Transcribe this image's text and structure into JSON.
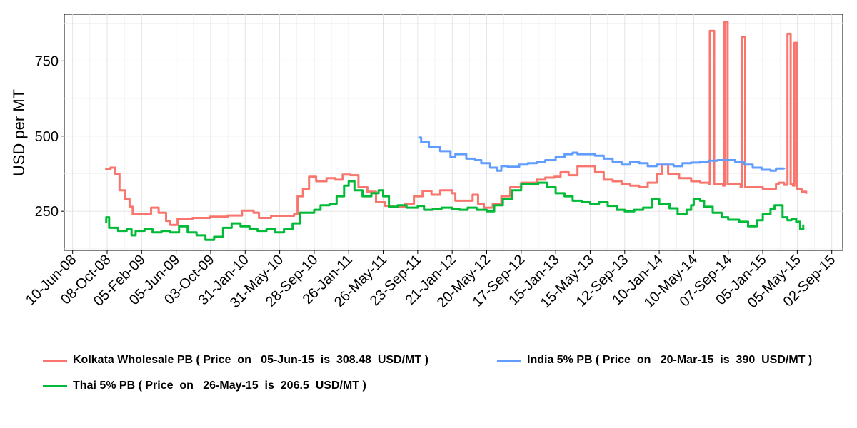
{
  "chart_data": {
    "type": "line",
    "title": "",
    "xlabel": "",
    "ylabel": "USD per MT",
    "ylim": [
      120,
      905
    ],
    "xlim": [
      "2008-05-12",
      "2015-10-10"
    ],
    "yticks": [
      250,
      500,
      750
    ],
    "xticks": [
      "10-Jun-08",
      "08-Oct-08",
      "05-Feb-09",
      "05-Jun-09",
      "03-Oct-09",
      "31-Jan-10",
      "31-May-10",
      "28-Sep-10",
      "26-Jan-11",
      "26-May-11",
      "23-Sep-11",
      "21-Jan-12",
      "20-May-12",
      "17-Sep-12",
      "15-Jan-13",
      "15-May-13",
      "12-Sep-13",
      "10-Jan-14",
      "10-May-14",
      "07-Sep-14",
      "05-Jan-15",
      "05-May-15",
      "02-Sep-15"
    ],
    "xtick_dates": [
      "2008-06-10",
      "2008-10-08",
      "2009-02-05",
      "2009-06-05",
      "2009-10-03",
      "2010-01-31",
      "2010-05-31",
      "2010-09-28",
      "2011-01-26",
      "2011-05-26",
      "2011-09-23",
      "2012-01-21",
      "2012-05-20",
      "2012-09-17",
      "2013-01-15",
      "2013-05-15",
      "2013-09-12",
      "2014-01-10",
      "2014-05-10",
      "2014-09-07",
      "2015-01-05",
      "2015-05-05",
      "2015-09-02"
    ],
    "grid": true,
    "legend_position": "bottom",
    "series": [
      {
        "name": "Kolkata Wholesale PB",
        "legend": "Kolkata Wholesale PB ( Price  on   05-Jun-15  is  308.48  USD/MT )",
        "color": "#F8766D",
        "points": [
          [
            "2008-10-01",
            390
          ],
          [
            "2008-10-20",
            395
          ],
          [
            "2008-11-05",
            375
          ],
          [
            "2008-11-20",
            320
          ],
          [
            "2008-12-10",
            290
          ],
          [
            "2008-12-25",
            265
          ],
          [
            "2009-01-05",
            240
          ],
          [
            "2009-02-05",
            242
          ],
          [
            "2009-03-10",
            262
          ],
          [
            "2009-04-05",
            245
          ],
          [
            "2009-05-01",
            218
          ],
          [
            "2009-05-15",
            205
          ],
          [
            "2009-06-10",
            225
          ],
          [
            "2009-08-01",
            228
          ],
          [
            "2009-10-01",
            232
          ],
          [
            "2009-12-01",
            236
          ],
          [
            "2010-01-20",
            252
          ],
          [
            "2010-03-01",
            245
          ],
          [
            "2010-03-20",
            228
          ],
          [
            "2010-05-01",
            235
          ],
          [
            "2010-07-20",
            240
          ],
          [
            "2010-08-01",
            300
          ],
          [
            "2010-08-20",
            325
          ],
          [
            "2010-09-10",
            365
          ],
          [
            "2010-10-05",
            350
          ],
          [
            "2010-11-10",
            360
          ],
          [
            "2010-12-10",
            355
          ],
          [
            "2011-01-05",
            372
          ],
          [
            "2011-02-01",
            370
          ],
          [
            "2011-03-01",
            330
          ],
          [
            "2011-04-01",
            315
          ],
          [
            "2011-05-01",
            280
          ],
          [
            "2011-06-01",
            268
          ],
          [
            "2011-07-01",
            265
          ],
          [
            "2011-08-10",
            275
          ],
          [
            "2011-09-10",
            300
          ],
          [
            "2011-10-10",
            318
          ],
          [
            "2011-11-10",
            305
          ],
          [
            "2011-12-10",
            320
          ],
          [
            "2012-01-21",
            310
          ],
          [
            "2012-02-01",
            285
          ],
          [
            "2012-03-10",
            285
          ],
          [
            "2012-04-01",
            305
          ],
          [
            "2012-04-20",
            275
          ],
          [
            "2012-05-10",
            262
          ],
          [
            "2012-06-10",
            275
          ],
          [
            "2012-07-10",
            300
          ],
          [
            "2012-08-10",
            330
          ],
          [
            "2012-09-17",
            345
          ],
          [
            "2012-10-20",
            345
          ],
          [
            "2012-11-10",
            355
          ],
          [
            "2012-12-10",
            362
          ],
          [
            "2013-01-10",
            365
          ],
          [
            "2013-02-01",
            380
          ],
          [
            "2013-03-01",
            370
          ],
          [
            "2013-04-01",
            400
          ],
          [
            "2013-05-01",
            400
          ],
          [
            "2013-06-01",
            380
          ],
          [
            "2013-07-01",
            355
          ],
          [
            "2013-08-01",
            350
          ],
          [
            "2013-09-01",
            340
          ],
          [
            "2013-10-01",
            335
          ],
          [
            "2013-11-01",
            330
          ],
          [
            "2013-12-01",
            345
          ],
          [
            "2014-01-01",
            375
          ],
          [
            "2014-01-20",
            405
          ],
          [
            "2014-02-10",
            375
          ],
          [
            "2014-03-20",
            360
          ],
          [
            "2014-05-01",
            350
          ],
          [
            "2014-06-01",
            345
          ],
          [
            "2014-07-01",
            340
          ],
          [
            "2014-07-05",
            850
          ],
          [
            "2014-07-15",
            850
          ],
          [
            "2014-07-20",
            340
          ],
          [
            "2014-08-20",
            335
          ],
          [
            "2014-08-25",
            880
          ],
          [
            "2014-09-01",
            880
          ],
          [
            "2014-09-05",
            340
          ],
          [
            "2014-10-20",
            330
          ],
          [
            "2014-10-25",
            830
          ],
          [
            "2014-11-01",
            830
          ],
          [
            "2014-11-05",
            330
          ],
          [
            "2015-01-05",
            325
          ],
          [
            "2015-02-20",
            340
          ],
          [
            "2015-03-01",
            345
          ],
          [
            "2015-03-20",
            338
          ],
          [
            "2015-04-01",
            840
          ],
          [
            "2015-04-08",
            840
          ],
          [
            "2015-04-12",
            340
          ],
          [
            "2015-04-20",
            335
          ],
          [
            "2015-04-25",
            810
          ],
          [
            "2015-05-01",
            810
          ],
          [
            "2015-05-05",
            325
          ],
          [
            "2015-05-20",
            315
          ],
          [
            "2015-06-05",
            308
          ]
        ]
      },
      {
        "name": "India 5% PB",
        "legend": "India 5% PB ( Price  on   20-Mar-15  is  390  USD/MT )",
        "color": "#619CFF",
        "points": [
          [
            "2011-09-25",
            495
          ],
          [
            "2011-10-05",
            480
          ],
          [
            "2011-11-01",
            465
          ],
          [
            "2011-12-10",
            450
          ],
          [
            "2012-01-15",
            430
          ],
          [
            "2012-02-01",
            440
          ],
          [
            "2012-03-10",
            425
          ],
          [
            "2012-04-10",
            420
          ],
          [
            "2012-05-01",
            410
          ],
          [
            "2012-06-01",
            395
          ],
          [
            "2012-06-25",
            385
          ],
          [
            "2012-07-10",
            400
          ],
          [
            "2012-08-01",
            398
          ],
          [
            "2012-09-10",
            405
          ],
          [
            "2012-10-10",
            410
          ],
          [
            "2012-11-10",
            415
          ],
          [
            "2012-12-10",
            420
          ],
          [
            "2013-01-15",
            430
          ],
          [
            "2013-02-15",
            440
          ],
          [
            "2013-03-15",
            445
          ],
          [
            "2013-04-01",
            440
          ],
          [
            "2013-05-01",
            440
          ],
          [
            "2013-06-01",
            435
          ],
          [
            "2013-07-01",
            425
          ],
          [
            "2013-08-01",
            415
          ],
          [
            "2013-09-01",
            405
          ],
          [
            "2013-10-01",
            415
          ],
          [
            "2013-11-01",
            410
          ],
          [
            "2013-12-01",
            400
          ],
          [
            "2014-01-01",
            405
          ],
          [
            "2014-02-01",
            405
          ],
          [
            "2014-03-01",
            400
          ],
          [
            "2014-04-01",
            410
          ],
          [
            "2014-05-01",
            412
          ],
          [
            "2014-06-01",
            415
          ],
          [
            "2014-07-01",
            418
          ],
          [
            "2014-08-01",
            420
          ],
          [
            "2014-09-01",
            420
          ],
          [
            "2014-10-01",
            415
          ],
          [
            "2014-11-01",
            405
          ],
          [
            "2014-12-01",
            395
          ],
          [
            "2015-01-01",
            388
          ],
          [
            "2015-02-01",
            385
          ],
          [
            "2015-02-20",
            392
          ],
          [
            "2015-03-20",
            390
          ]
        ]
      },
      {
        "name": "Thai 5% PB",
        "legend": "Thai 5% PB ( Price  on   26-May-15  is  206.5  USD/MT )",
        "color": "#00BA38",
        "points": [
          [
            "2008-10-01",
            215
          ],
          [
            "2008-10-05",
            230
          ],
          [
            "2008-10-15",
            195
          ],
          [
            "2008-11-15",
            185
          ],
          [
            "2008-12-15",
            190
          ],
          [
            "2009-01-01",
            170
          ],
          [
            "2009-01-15",
            185
          ],
          [
            "2009-02-15",
            190
          ],
          [
            "2009-03-15",
            180
          ],
          [
            "2009-04-15",
            185
          ],
          [
            "2009-05-15",
            180
          ],
          [
            "2009-06-15",
            200
          ],
          [
            "2009-07-15",
            180
          ],
          [
            "2009-08-15",
            170
          ],
          [
            "2009-09-15",
            155
          ],
          [
            "2009-10-15",
            165
          ],
          [
            "2009-11-15",
            195
          ],
          [
            "2009-12-15",
            210
          ],
          [
            "2010-01-15",
            200
          ],
          [
            "2010-02-15",
            190
          ],
          [
            "2010-03-15",
            185
          ],
          [
            "2010-04-15",
            190
          ],
          [
            "2010-05-15",
            180
          ],
          [
            "2010-06-15",
            190
          ],
          [
            "2010-07-15",
            210
          ],
          [
            "2010-08-10",
            245
          ],
          [
            "2010-09-01",
            245
          ],
          [
            "2010-09-28",
            255
          ],
          [
            "2010-10-20",
            270
          ],
          [
            "2010-11-20",
            275
          ],
          [
            "2010-12-15",
            300
          ],
          [
            "2011-01-10",
            335
          ],
          [
            "2011-01-26",
            350
          ],
          [
            "2011-02-15",
            320
          ],
          [
            "2011-03-15",
            300
          ],
          [
            "2011-04-15",
            310
          ],
          [
            "2011-05-10",
            320
          ],
          [
            "2011-05-26",
            300
          ],
          [
            "2011-06-15",
            265
          ],
          [
            "2011-07-15",
            270
          ],
          [
            "2011-08-15",
            262
          ],
          [
            "2011-09-23",
            268
          ],
          [
            "2011-10-15",
            255
          ],
          [
            "2011-11-15",
            258
          ],
          [
            "2011-12-15",
            262
          ],
          [
            "2012-01-21",
            258
          ],
          [
            "2012-02-15",
            255
          ],
          [
            "2012-03-15",
            262
          ],
          [
            "2012-04-15",
            255
          ],
          [
            "2012-05-20",
            250
          ],
          [
            "2012-06-15",
            270
          ],
          [
            "2012-07-15",
            290
          ],
          [
            "2012-08-15",
            320
          ],
          [
            "2012-09-17",
            340
          ],
          [
            "2012-10-15",
            340
          ],
          [
            "2012-11-15",
            345
          ],
          [
            "2012-12-15",
            330
          ],
          [
            "2013-01-15",
            310
          ],
          [
            "2013-02-15",
            300
          ],
          [
            "2013-03-15",
            285
          ],
          [
            "2013-04-15",
            280
          ],
          [
            "2013-05-15",
            275
          ],
          [
            "2013-06-15",
            280
          ],
          [
            "2013-07-15",
            268
          ],
          [
            "2013-08-15",
            255
          ],
          [
            "2013-09-12",
            250
          ],
          [
            "2013-10-15",
            255
          ],
          [
            "2013-11-15",
            262
          ],
          [
            "2013-12-15",
            290
          ],
          [
            "2014-01-10",
            275
          ],
          [
            "2014-02-15",
            260
          ],
          [
            "2014-03-15",
            240
          ],
          [
            "2014-04-15",
            255
          ],
          [
            "2014-05-01",
            270
          ],
          [
            "2014-05-10",
            290
          ],
          [
            "2014-06-01",
            285
          ],
          [
            "2014-06-15",
            265
          ],
          [
            "2014-07-15",
            245
          ],
          [
            "2014-08-15",
            230
          ],
          [
            "2014-09-07",
            222
          ],
          [
            "2014-10-15",
            215
          ],
          [
            "2014-11-15",
            200
          ],
          [
            "2014-12-15",
            220
          ],
          [
            "2015-01-05",
            240
          ],
          [
            "2015-02-01",
            258
          ],
          [
            "2015-02-15",
            270
          ],
          [
            "2015-03-15",
            230
          ],
          [
            "2015-04-01",
            220
          ],
          [
            "2015-04-15",
            225
          ],
          [
            "2015-05-01",
            215
          ],
          [
            "2015-05-15",
            190
          ],
          [
            "2015-05-26",
            206
          ]
        ]
      }
    ]
  }
}
